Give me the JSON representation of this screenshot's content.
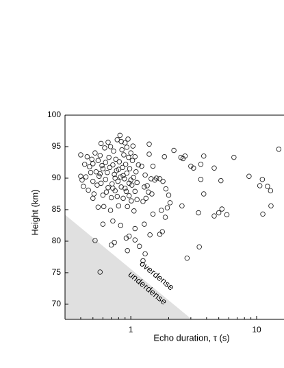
{
  "chart_data": {
    "type": "scatter",
    "x_label": "Echo duration, τ (s)",
    "y_label": "Height (km)",
    "xlog": true,
    "xlim": [
      0.3,
      16.5
    ],
    "ylim": [
      67.6,
      100
    ],
    "xticks": [
      1,
      10
    ],
    "xminorticks": [
      0.4,
      0.5,
      0.6,
      0.7,
      0.8,
      0.9,
      2,
      3,
      4,
      5,
      6,
      7,
      8,
      9
    ],
    "yticks": [
      70,
      75,
      80,
      85,
      90,
      95,
      100
    ],
    "marker_color": "#222222",
    "region": {
      "color": "#e0e0e0",
      "x": [
        0.3,
        3.05
      ],
      "y": [
        84.2,
        67.6
      ]
    },
    "annotations": [
      {
        "text": "overdense",
        "x": 1.6,
        "y": 74.5
      },
      {
        "text": "underdense",
        "x": 1.35,
        "y": 72.5
      }
    ],
    "x": [
      0.52,
      0.57,
      0.6,
      0.72,
      0.7,
      0.74,
      0.83,
      0.92,
      0.97,
      0.94,
      1.08,
      1.08,
      1.17,
      1.25,
      1.3,
      1.28,
      1.42,
      1.7,
      1.78,
      1.5,
      1.75,
      1.88,
      2.8,
      3.5,
      3.45,
      3.8,
      4.6,
      5.0,
      5.3,
      5.8,
      4.6,
      3.6,
      3.8,
      3.0,
      3.15,
      3.6,
      5.2,
      6.6,
      8.7,
      10.6,
      11.1,
      11.2,
      12.2,
      12.9,
      13.0,
      15.0,
      2.55,
      2.5,
      2.2,
      2.6,
      2.7,
      1.85,
      1.9,
      2.0,
      2.05,
      1.95,
      1.6,
      1.7,
      1.8,
      1.55,
      1.4,
      1.5,
      1.45,
      1.35,
      1.38,
      1.47,
      1.32,
      1.25,
      1.28,
      1.22,
      1.3,
      1.4,
      0.5,
      0.42,
      0.44,
      0.41,
      0.4,
      0.45,
      0.47,
      0.48,
      0.5,
      0.5,
      0.52,
      0.53,
      0.54,
      0.55,
      0.56,
      0.57,
      0.58,
      0.58,
      0.6,
      0.6,
      0.61,
      0.62,
      0.63,
      0.63,
      0.65,
      0.66,
      0.67,
      0.68,
      0.69,
      0.7,
      0.71,
      0.72,
      0.73,
      0.74,
      0.75,
      0.76,
      0.77,
      0.78,
      0.79,
      0.8,
      0.81,
      0.82,
      0.83,
      0.84,
      0.85,
      0.86,
      0.87,
      0.88,
      0.89,
      0.9,
      0.91,
      0.92,
      0.93,
      0.94,
      0.95,
      0.96,
      0.97,
      0.98,
      1.0,
      1.01,
      1.02,
      1.03,
      1.05,
      1.06,
      1.08,
      1.1,
      1.12,
      1.15,
      0.4,
      0.43,
      0.46,
      0.49,
      0.51,
      0.55,
      0.57,
      0.59,
      0.64,
      0.66,
      0.69,
      0.72,
      0.75,
      0.78,
      0.8,
      0.84,
      0.87,
      0.9,
      0.93,
      0.97,
      1.0,
      1.04,
      1.08,
      1.12
    ],
    "values": [
      80.1,
      75.1,
      82.7,
      83.2,
      79.4,
      79.8,
      82.5,
      80.5,
      80.8,
      78.5,
      82.0,
      80.2,
      79.2,
      76.9,
      78.0,
      82.7,
      81.0,
      81.1,
      81.5,
      84.3,
      84.9,
      83.8,
      77.3,
      79.1,
      84.5,
      87.5,
      84.0,
      84.5,
      85.1,
      84.2,
      91.6,
      89.8,
      93.5,
      91.9,
      91.6,
      92.2,
      89.6,
      93.3,
      90.3,
      88.8,
      89.8,
      84.3,
      88.7,
      88.0,
      85.6,
      94.6,
      85.6,
      93.3,
      94.4,
      93.1,
      93.5,
      93.4,
      88.3,
      87.3,
      86.1,
      85.3,
      90.0,
      89.9,
      89.5,
      89.7,
      95.4,
      91.9,
      89.9,
      88.8,
      87.8,
      87.5,
      86.8,
      86.3,
      88.6,
      91.9,
      90.5,
      93.8,
      86.8,
      88.7,
      90.2,
      89.7,
      93.7,
      93.4,
      91.8,
      90.9,
      92.3,
      89.5,
      94.0,
      91.0,
      88.9,
      92.8,
      90.3,
      93.6,
      95.5,
      89.2,
      91.5,
      87.3,
      85.5,
      94.8,
      92.5,
      89.8,
      90.9,
      88.5,
      93.3,
      91.7,
      95.0,
      86.9,
      89.1,
      92.1,
      94.3,
      90.6,
      88.0,
      93.0,
      91.2,
      96.1,
      89.5,
      85.6,
      92.6,
      96.8,
      90.2,
      88.6,
      94.5,
      91.7,
      86.8,
      93.7,
      89.9,
      95.6,
      92.2,
      87.9,
      90.8,
      85.5,
      96.2,
      93.3,
      89.2,
      91.5,
      94.0,
      86.4,
      88.9,
      92.8,
      90.1,
      84.8,
      93.4,
      91.0,
      89.3,
      92.1,
      90.3,
      92.2,
      88.1,
      93.0,
      87.5,
      85.4,
      90.7,
      92.0,
      87.8,
      95.7,
      84.9,
      88.4,
      90.0,
      87.1,
      91.4,
      95.8,
      90.4,
      88.4,
      94.9,
      87.2,
      89.7,
      95.1,
      87.9,
      86.6
    ]
  }
}
